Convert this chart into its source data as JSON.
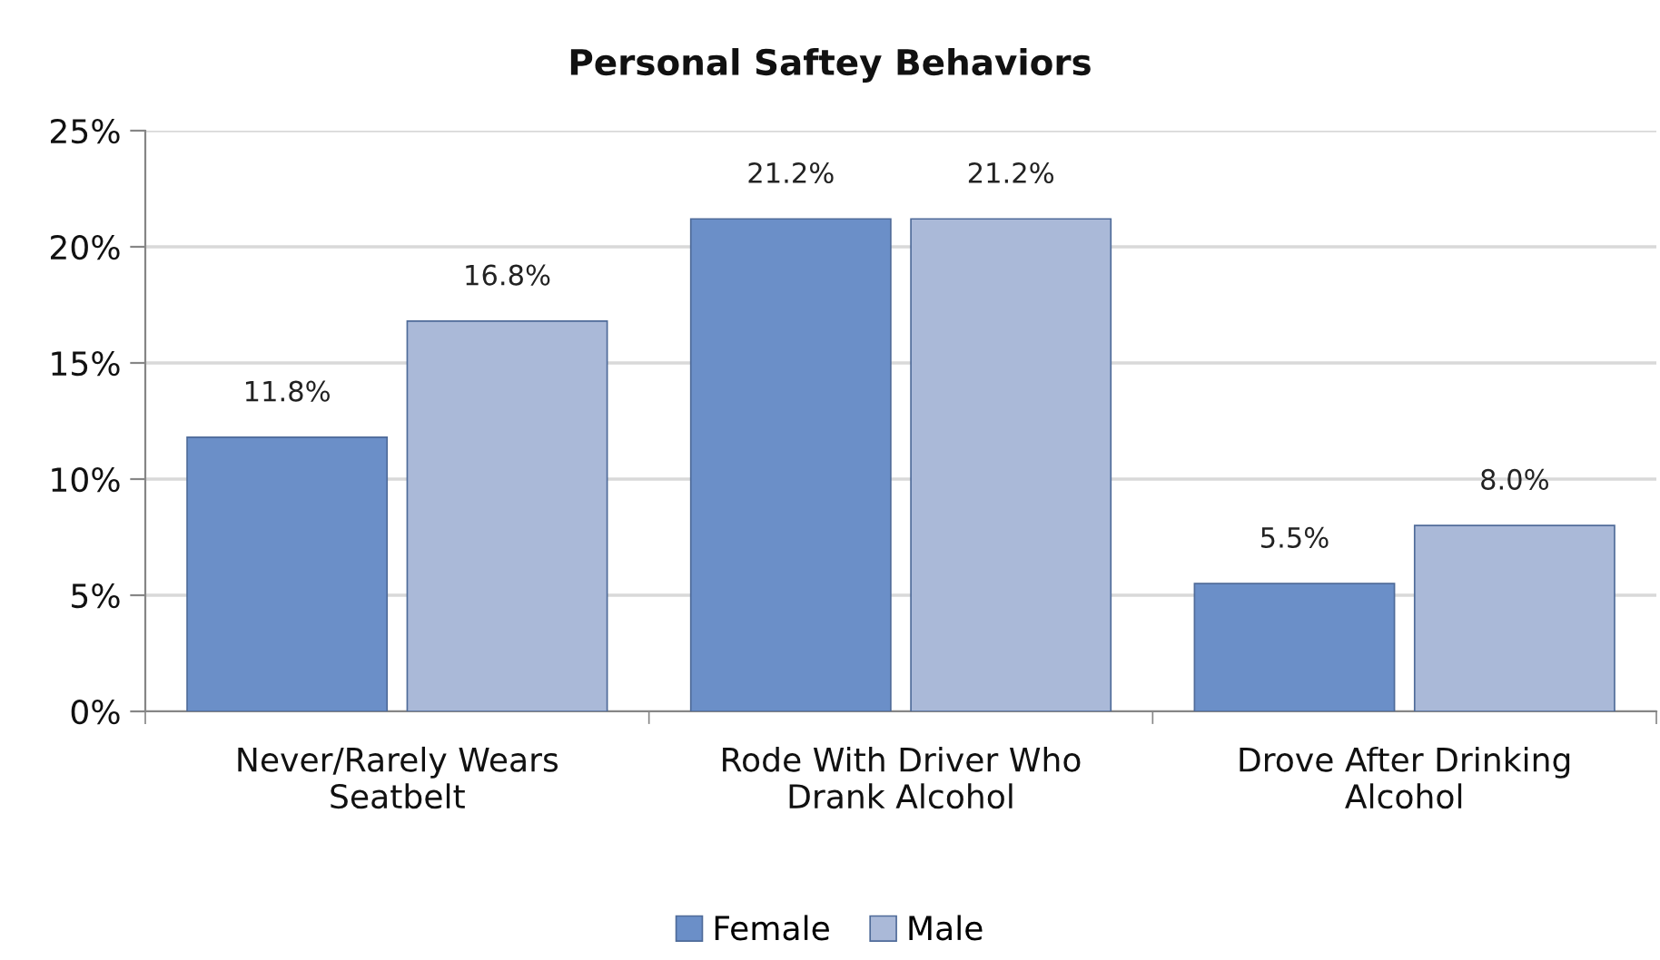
{
  "chart_data": {
    "type": "bar",
    "title": "Personal Saftey Behaviors",
    "categories": [
      "Never/Rarely Wears\nSeatbelt",
      "Rode With Driver Who\nDrank Alcohol",
      "Drove After Drinking\nAlcohol"
    ],
    "series": [
      {
        "name": "Female",
        "color": "#6b8fc8",
        "values": [
          11.8,
          21.2,
          5.5
        ],
        "value_labels": [
          "11.8%",
          "21.2%",
          "5.5%"
        ]
      },
      {
        "name": "Male",
        "color": "#aab9d8",
        "values": [
          16.8,
          21.2,
          8.0
        ],
        "value_labels": [
          "16.8%",
          "21.2%",
          "8.0%"
        ]
      }
    ],
    "ylim": [
      0,
      25
    ],
    "yticks": [
      {
        "value": 0,
        "label": "0%"
      },
      {
        "value": 5,
        "label": "5%"
      },
      {
        "value": 10,
        "label": "10%"
      },
      {
        "value": 15,
        "label": "15%"
      },
      {
        "value": 20,
        "label": "20%"
      },
      {
        "value": 25,
        "label": "25%"
      }
    ],
    "grid": "y",
    "legend": "bottom"
  }
}
